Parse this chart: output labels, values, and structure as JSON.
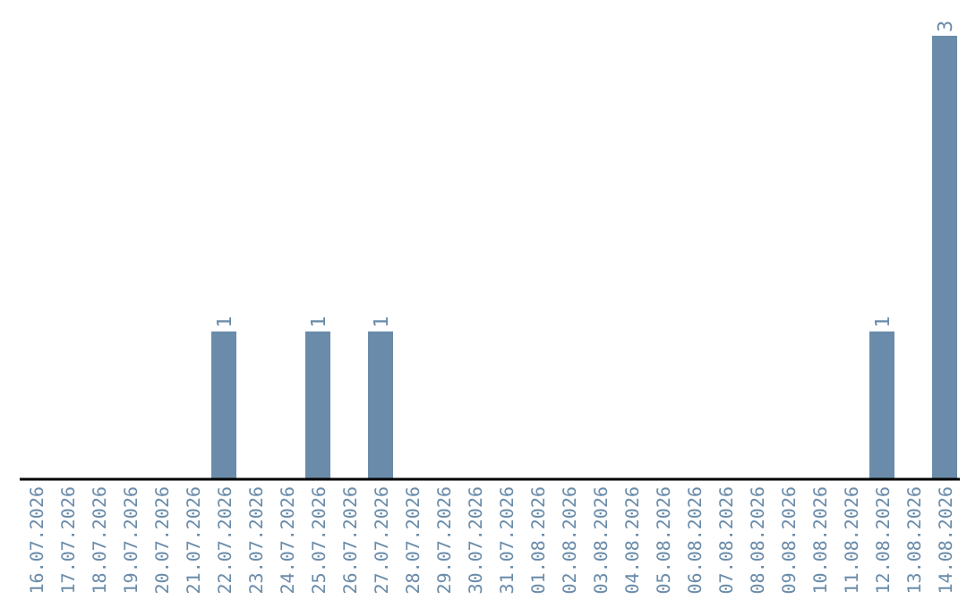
{
  "chart_data": {
    "type": "bar",
    "categories": [
      "16.07.2026",
      "17.07.2026",
      "18.07.2026",
      "19.07.2026",
      "20.07.2026",
      "21.07.2026",
      "22.07.2026",
      "23.07.2026",
      "24.07.2026",
      "25.07.2026",
      "26.07.2026",
      "27.07.2026",
      "28.07.2026",
      "29.07.2026",
      "30.07.2026",
      "31.07.2026",
      "01.08.2026",
      "02.08.2026",
      "03.08.2026",
      "04.08.2026",
      "05.08.2026",
      "06.08.2026",
      "07.08.2026",
      "08.08.2026",
      "09.08.2026",
      "10.08.2026",
      "11.08.2026",
      "12.08.2026",
      "13.08.2026",
      "14.08.2026"
    ],
    "values": [
      0,
      0,
      0,
      0,
      0,
      0,
      1,
      0,
      0,
      1,
      0,
      1,
      0,
      0,
      0,
      0,
      0,
      0,
      0,
      0,
      0,
      0,
      0,
      0,
      0,
      0,
      0,
      1,
      0,
      3
    ],
    "value_labels": [
      null,
      null,
      null,
      null,
      null,
      null,
      "1",
      null,
      null,
      "1",
      null,
      "1",
      null,
      null,
      null,
      null,
      null,
      null,
      null,
      null,
      null,
      null,
      null,
      null,
      null,
      null,
      null,
      "1",
      null,
      "3"
    ],
    "color": "#6a8caa",
    "grid": false,
    "legend": false
  }
}
